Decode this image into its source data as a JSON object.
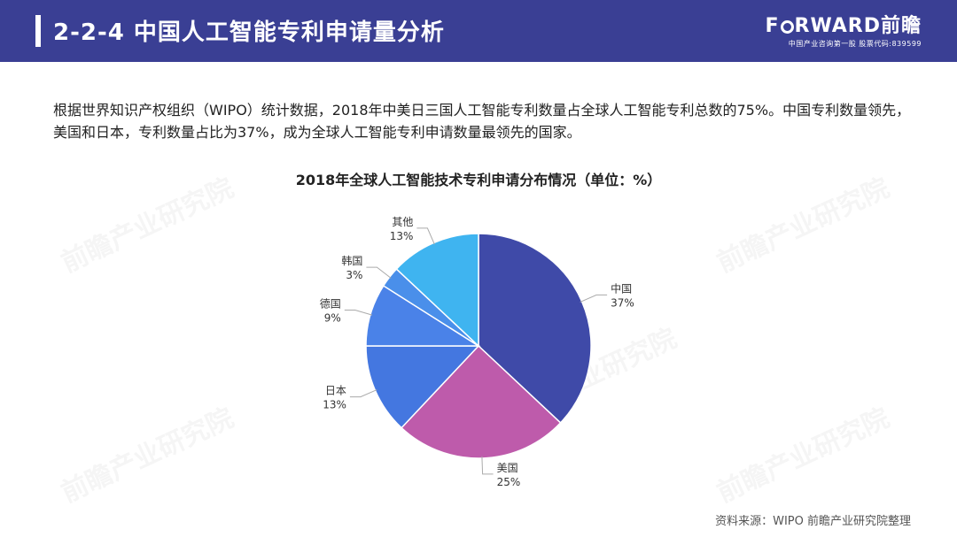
{
  "header": {
    "title": "2-2-4 中国人工智能专利申请量分析",
    "logo_brand_pre": "F",
    "logo_brand_post": "RWARD前瞻",
    "logo_sub": "中国产业咨询第一股 股票代码:839599"
  },
  "intro_text": "根据世界知识产权组织（WIPO）统计数据，2018年中美日三国人工智能专利数量占全球人工智能专利总数的75%。中国专利数量领先，美国和日本，专利数量占比为37%，成为全球人工智能专利申请数量最领先的国家。",
  "watermark": "前瞻产业研究院",
  "source": "资料来源：WIPO 前瞻产业研究院整理",
  "chart_data": {
    "type": "pie",
    "title": "2018年全球人工智能技术专利申请分布情况（单位：%）",
    "unit": "%",
    "start_angle_deg": 0,
    "direction": "clockwise",
    "slices": [
      {
        "label": "中国",
        "value": 37,
        "value_label": "37%",
        "color": "#3f4aa8"
      },
      {
        "label": "美国",
        "value": 25,
        "value_label": "25%",
        "color": "#be5bab"
      },
      {
        "label": "日本",
        "value": 13,
        "value_label": "13%",
        "color": "#4477e0"
      },
      {
        "label": "德国",
        "value": 9,
        "value_label": "9%",
        "color": "#4a82e8"
      },
      {
        "label": "韩国",
        "value": 3,
        "value_label": "3%",
        "color": "#4a8fea"
      },
      {
        "label": "其他",
        "value": 13,
        "value_label": "13%",
        "color": "#3fb4f0"
      }
    ]
  }
}
